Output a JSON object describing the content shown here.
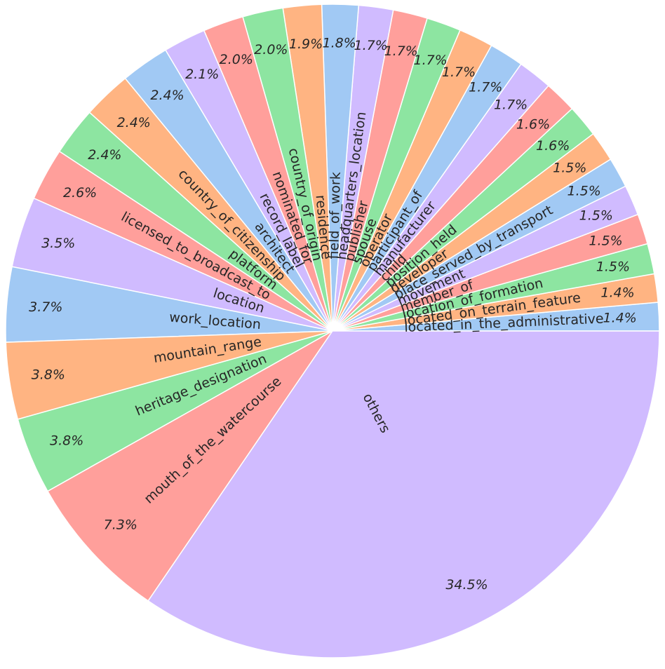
{
  "chart_data": {
    "type": "pie",
    "title": "",
    "colors": [
      "#a1c9f4",
      "#ffb482",
      "#8de5a1",
      "#ff9f9b",
      "#d0bbff"
    ],
    "slices": [
      {
        "label": "located_in_the_administrative",
        "value": 1.4,
        "pct": "1.4%"
      },
      {
        "label": "located_on_terrain_feature",
        "value": 1.4,
        "pct": "1.4%"
      },
      {
        "label": "location_of_formation",
        "value": 1.5,
        "pct": "1.5%"
      },
      {
        "label": "member_of",
        "value": 1.5,
        "pct": "1.5%"
      },
      {
        "label": "movement",
        "value": 1.5,
        "pct": "1.5%"
      },
      {
        "label": "place_served_by_transport",
        "value": 1.5,
        "pct": "1.5%"
      },
      {
        "label": "developer",
        "value": 1.5,
        "pct": "1.5%"
      },
      {
        "label": "position_held",
        "value": 1.6,
        "pct": "1.6%"
      },
      {
        "label": "child",
        "value": 1.6,
        "pct": "1.6%"
      },
      {
        "label": "manufacturer",
        "value": 1.7,
        "pct": "1.7%"
      },
      {
        "label": "participant_of",
        "value": 1.7,
        "pct": "1.7%"
      },
      {
        "label": "operator",
        "value": 1.7,
        "pct": "1.7%"
      },
      {
        "label": "spouse",
        "value": 1.7,
        "pct": "1.7%"
      },
      {
        "label": "publisher",
        "value": 1.7,
        "pct": "1.7%"
      },
      {
        "label": "headquarters_location",
        "value": 1.7,
        "pct": "1.7%"
      },
      {
        "label": "field_of_work",
        "value": 1.8,
        "pct": "1.8%"
      },
      {
        "label": "residence",
        "value": 1.9,
        "pct": "1.9%"
      },
      {
        "label": "country_of_origin",
        "value": 2.0,
        "pct": "2.0%"
      },
      {
        "label": "nominated_for",
        "value": 2.0,
        "pct": "2.0%"
      },
      {
        "label": "record_label",
        "value": 2.1,
        "pct": "2.1%"
      },
      {
        "label": "architect",
        "value": 2.4,
        "pct": "2.4%"
      },
      {
        "label": "country_of_citizenship",
        "value": 2.4,
        "pct": "2.4%"
      },
      {
        "label": "platform",
        "value": 2.4,
        "pct": "2.4%"
      },
      {
        "label": "licensed_to_broadcast_to",
        "value": 2.6,
        "pct": "2.6%"
      },
      {
        "label": "location",
        "value": 3.5,
        "pct": "3.5%"
      },
      {
        "label": "work_location",
        "value": 3.7,
        "pct": "3.7%"
      },
      {
        "label": "mountain_range",
        "value": 3.8,
        "pct": "3.8%"
      },
      {
        "label": "heritage_designation",
        "value": 3.8,
        "pct": "3.8%"
      },
      {
        "label": "mouth_of_the_watercourse",
        "value": 7.3,
        "pct": "7.3%"
      },
      {
        "label": "others",
        "value": 34.5,
        "pct": "34.5%"
      }
    ]
  }
}
